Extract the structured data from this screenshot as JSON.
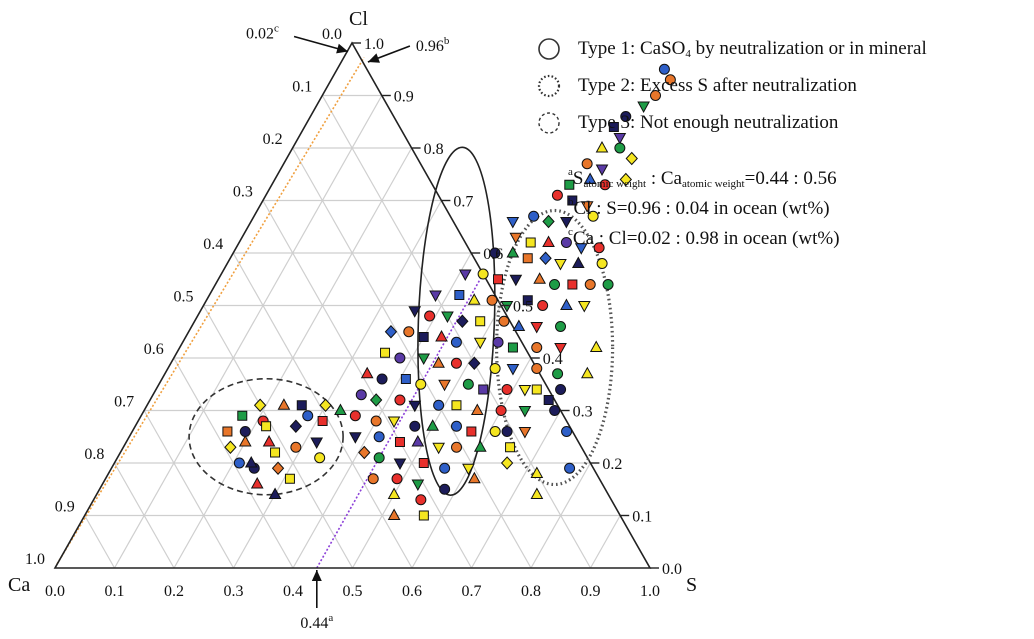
{
  "chart_data": {
    "type": "scatter",
    "subtype": "ternary",
    "axes": {
      "vertex_top": "Cl",
      "vertex_left": "Ca",
      "vertex_right": "S",
      "bottom_ticks": [
        "0.0",
        "0.1",
        "0.2",
        "0.3",
        "0.4",
        "0.5",
        "0.6",
        "0.7",
        "0.8",
        "0.9",
        "1.0"
      ],
      "right_ticks": [
        "0.0",
        "0.1",
        "0.2",
        "0.3",
        "0.4",
        "0.5",
        "0.6",
        "0.7",
        "0.8",
        "0.9",
        "1.0"
      ],
      "left_ticks": [
        "0.0",
        "0.1",
        "0.2",
        "0.3",
        "0.4",
        "0.5",
        "0.6",
        "0.7",
        "0.8",
        "0.9",
        "1.0"
      ],
      "grid": true
    },
    "reference_lines": [
      {
        "label": "0.44",
        "sup": "a",
        "S": 0.44,
        "color": "#8b3fd8"
      },
      {
        "label": "0.96",
        "sup": "b",
        "Cl": 0.96
      },
      {
        "label": "0.02",
        "sup": "c",
        "Ca": 0.02,
        "color": "#f0a040"
      }
    ],
    "ellipses": [
      {
        "type": "Type 1",
        "center_S": 0.44,
        "center_Cl": 0.47,
        "style": "solid"
      },
      {
        "type": "Type 2",
        "center_S": 0.63,
        "center_Cl": 0.42,
        "style": "dotted"
      },
      {
        "type": "Type 3",
        "center_S": 0.23,
        "center_Cl": 0.25,
        "style": "dashed"
      }
    ],
    "marker_colors": [
      "#e8302c",
      "#f5e620",
      "#1e9c46",
      "#2e5fc8",
      "#e8762a",
      "#5a3aa6",
      "#1c1c5a"
    ],
    "marker_shapes": [
      "circle",
      "square",
      "triangle-up",
      "triangle-down",
      "diamond"
    ],
    "points": [
      [
        0.55,
        0.95,
        3,
        0
      ],
      [
        0.57,
        0.93,
        4,
        0
      ],
      [
        0.56,
        0.9,
        4,
        0
      ],
      [
        0.53,
        0.86,
        6,
        0
      ],
      [
        0.55,
        0.88,
        2,
        3
      ],
      [
        0.52,
        0.84,
        6,
        1
      ],
      [
        0.54,
        0.82,
        5,
        3
      ],
      [
        0.52,
        0.8,
        1,
        2
      ],
      [
        0.55,
        0.8,
        2,
        0
      ],
      [
        0.58,
        0.78,
        1,
        4
      ],
      [
        0.51,
        0.77,
        4,
        0
      ],
      [
        0.54,
        0.76,
        5,
        3
      ],
      [
        0.5,
        0.73,
        2,
        1
      ],
      [
        0.53,
        0.74,
        3,
        2
      ],
      [
        0.56,
        0.73,
        0,
        0
      ],
      [
        0.59,
        0.74,
        1,
        4
      ],
      [
        0.49,
        0.71,
        0,
        0
      ],
      [
        0.52,
        0.7,
        6,
        1
      ],
      [
        0.55,
        0.69,
        4,
        3
      ],
      [
        0.47,
        0.67,
        3,
        0
      ],
      [
        0.44,
        0.66,
        3,
        3
      ],
      [
        0.5,
        0.66,
        2,
        4
      ],
      [
        0.53,
        0.66,
        6,
        3
      ],
      [
        0.57,
        0.67,
        1,
        0
      ],
      [
        0.46,
        0.63,
        4,
        3
      ],
      [
        0.49,
        0.62,
        1,
        1
      ],
      [
        0.52,
        0.62,
        0,
        2
      ],
      [
        0.55,
        0.62,
        5,
        0
      ],
      [
        0.58,
        0.61,
        3,
        3
      ],
      [
        0.61,
        0.61,
        0,
        0
      ],
      [
        0.44,
        0.6,
        6,
        0
      ],
      [
        0.47,
        0.6,
        2,
        2
      ],
      [
        0.5,
        0.59,
        4,
        1
      ],
      [
        0.53,
        0.59,
        3,
        4
      ],
      [
        0.56,
        0.58,
        1,
        3
      ],
      [
        0.59,
        0.58,
        6,
        2
      ],
      [
        0.63,
        0.58,
        1,
        0
      ],
      [
        0.41,
        0.56,
        5,
        3
      ],
      [
        0.44,
        0.56,
        1,
        0
      ],
      [
        0.47,
        0.55,
        0,
        1
      ],
      [
        0.5,
        0.55,
        6,
        3
      ],
      [
        0.54,
        0.55,
        4,
        2
      ],
      [
        0.57,
        0.54,
        2,
        0
      ],
      [
        0.6,
        0.54,
        0,
        1
      ],
      [
        0.63,
        0.54,
        4,
        0
      ],
      [
        0.66,
        0.54,
        2,
        0
      ],
      [
        0.38,
        0.52,
        5,
        3
      ],
      [
        0.42,
        0.52,
        3,
        1
      ],
      [
        0.45,
        0.51,
        1,
        2
      ],
      [
        0.48,
        0.51,
        4,
        0
      ],
      [
        0.51,
        0.5,
        2,
        3
      ],
      [
        0.54,
        0.51,
        6,
        1
      ],
      [
        0.57,
        0.5,
        0,
        0
      ],
      [
        0.61,
        0.5,
        3,
        2
      ],
      [
        0.64,
        0.5,
        1,
        3
      ],
      [
        0.36,
        0.49,
        6,
        3
      ],
      [
        0.39,
        0.48,
        0,
        0
      ],
      [
        0.42,
        0.48,
        2,
        3
      ],
      [
        0.45,
        0.47,
        6,
        4
      ],
      [
        0.48,
        0.47,
        1,
        1
      ],
      [
        0.52,
        0.47,
        4,
        0
      ],
      [
        0.55,
        0.46,
        3,
        2
      ],
      [
        0.58,
        0.46,
        0,
        3
      ],
      [
        0.62,
        0.46,
        2,
        0
      ],
      [
        0.34,
        0.45,
        3,
        4
      ],
      [
        0.37,
        0.45,
        4,
        0
      ],
      [
        0.4,
        0.44,
        6,
        1
      ],
      [
        0.43,
        0.44,
        0,
        2
      ],
      [
        0.46,
        0.43,
        3,
        0
      ],
      [
        0.5,
        0.43,
        1,
        3
      ],
      [
        0.53,
        0.43,
        5,
        0
      ],
      [
        0.56,
        0.42,
        2,
        1
      ],
      [
        0.6,
        0.42,
        4,
        0
      ],
      [
        0.64,
        0.42,
        0,
        3
      ],
      [
        0.35,
        0.41,
        1,
        1
      ],
      [
        0.38,
        0.4,
        5,
        0
      ],
      [
        0.42,
        0.4,
        2,
        3
      ],
      [
        0.45,
        0.39,
        4,
        2
      ],
      [
        0.48,
        0.39,
        0,
        0
      ],
      [
        0.51,
        0.39,
        6,
        4
      ],
      [
        0.55,
        0.38,
        1,
        0
      ],
      [
        0.58,
        0.38,
        3,
        3
      ],
      [
        0.62,
        0.38,
        4,
        0
      ],
      [
        0.66,
        0.37,
        2,
        0
      ],
      [
        0.71,
        0.37,
        1,
        2
      ],
      [
        0.34,
        0.37,
        0,
        2
      ],
      [
        0.37,
        0.36,
        6,
        0
      ],
      [
        0.41,
        0.36,
        3,
        1
      ],
      [
        0.44,
        0.35,
        1,
        0
      ],
      [
        0.48,
        0.35,
        4,
        3
      ],
      [
        0.52,
        0.35,
        2,
        0
      ],
      [
        0.55,
        0.34,
        5,
        1
      ],
      [
        0.59,
        0.34,
        0,
        0
      ],
      [
        0.62,
        0.34,
        1,
        3
      ],
      [
        0.68,
        0.34,
        6,
        0
      ],
      [
        0.35,
        0.33,
        5,
        0
      ],
      [
        0.38,
        0.32,
        2,
        4
      ],
      [
        0.42,
        0.32,
        0,
        0
      ],
      [
        0.45,
        0.31,
        6,
        3
      ],
      [
        0.49,
        0.31,
        3,
        0
      ],
      [
        0.52,
        0.31,
        1,
        1
      ],
      [
        0.56,
        0.3,
        4,
        2
      ],
      [
        0.6,
        0.3,
        0,
        0
      ],
      [
        0.64,
        0.3,
        2,
        3
      ],
      [
        0.69,
        0.3,
        6,
        0
      ],
      [
        0.36,
        0.29,
        0,
        0
      ],
      [
        0.4,
        0.28,
        4,
        0
      ],
      [
        0.43,
        0.28,
        1,
        3
      ],
      [
        0.47,
        0.27,
        6,
        0
      ],
      [
        0.5,
        0.27,
        2,
        2
      ],
      [
        0.54,
        0.27,
        3,
        0
      ],
      [
        0.57,
        0.26,
        0,
        1
      ],
      [
        0.61,
        0.26,
        1,
        0
      ],
      [
        0.66,
        0.26,
        4,
        3
      ],
      [
        0.73,
        0.26,
        3,
        0
      ],
      [
        0.38,
        0.25,
        6,
        3
      ],
      [
        0.42,
        0.25,
        3,
        0
      ],
      [
        0.46,
        0.24,
        0,
        1
      ],
      [
        0.49,
        0.24,
        5,
        2
      ],
      [
        0.53,
        0.23,
        1,
        3
      ],
      [
        0.56,
        0.23,
        4,
        0
      ],
      [
        0.6,
        0.23,
        2,
        2
      ],
      [
        0.65,
        0.23,
        1,
        1
      ],
      [
        0.41,
        0.22,
        4,
        4
      ],
      [
        0.44,
        0.21,
        2,
        0
      ],
      [
        0.48,
        0.2,
        6,
        3
      ],
      [
        0.52,
        0.2,
        0,
        1
      ],
      [
        0.56,
        0.19,
        3,
        0
      ],
      [
        0.6,
        0.19,
        1,
        3
      ],
      [
        0.45,
        0.17,
        4,
        0
      ],
      [
        0.49,
        0.17,
        0,
        0
      ],
      [
        0.53,
        0.16,
        2,
        3
      ],
      [
        0.58,
        0.15,
        6,
        0
      ],
      [
        0.5,
        0.14,
        1,
        2
      ],
      [
        0.55,
        0.13,
        0,
        0
      ],
      [
        0.52,
        0.1,
        4,
        2
      ],
      [
        0.57,
        0.1,
        1,
        1
      ],
      [
        0.17,
        0.29,
        2,
        1
      ],
      [
        0.19,
        0.31,
        1,
        4
      ],
      [
        0.21,
        0.28,
        0,
        0
      ],
      [
        0.23,
        0.31,
        4,
        2
      ],
      [
        0.22,
        0.27,
        1,
        1
      ],
      [
        0.26,
        0.31,
        6,
        1
      ],
      [
        0.28,
        0.29,
        3,
        0
      ],
      [
        0.3,
        0.31,
        1,
        4
      ],
      [
        0.27,
        0.27,
        6,
        4
      ],
      [
        0.31,
        0.28,
        0,
        1
      ],
      [
        0.33,
        0.3,
        2,
        2
      ],
      [
        0.2,
        0.24,
        4,
        2
      ],
      [
        0.24,
        0.24,
        0,
        2
      ],
      [
        0.26,
        0.22,
        1,
        1
      ],
      [
        0.29,
        0.23,
        4,
        0
      ],
      [
        0.32,
        0.24,
        6,
        3
      ],
      [
        0.34,
        0.21,
        1,
        0
      ],
      [
        0.21,
        0.2,
        3,
        0
      ],
      [
        0.24,
        0.19,
        6,
        0
      ],
      [
        0.28,
        0.19,
        4,
        4
      ],
      [
        0.31,
        0.17,
        1,
        1
      ],
      [
        0.26,
        0.16,
        0,
        2
      ],
      [
        0.3,
        0.14,
        6,
        2
      ],
      [
        0.19,
        0.26,
        6,
        0
      ],
      [
        0.23,
        0.2,
        6,
        2
      ],
      [
        0.16,
        0.26,
        4,
        1
      ],
      [
        0.18,
        0.23,
        1,
        4
      ],
      [
        0.63,
        0.26,
        6,
        0
      ],
      [
        0.66,
        0.2,
        1,
        4
      ],
      [
        0.72,
        0.18,
        1,
        2
      ],
      [
        0.77,
        0.19,
        3,
        0
      ],
      [
        0.74,
        0.14,
        1,
        2
      ],
      [
        0.62,
        0.17,
        4,
        2
      ],
      [
        0.64,
        0.34,
        1,
        1
      ],
      [
        0.7,
        0.42,
        1,
        2
      ],
      [
        0.67,
        0.32,
        6,
        1
      ]
    ]
  },
  "legend": {
    "items": [
      {
        "pre": "Type 1: CaSO",
        "sub": "4",
        "post": " by neutralization or in mineral",
        "style": "solid"
      },
      {
        "pre": "Type 2: Excess S after neutralization",
        "sub": "",
        "post": "",
        "style": "dotted"
      },
      {
        "pre": "Type 3: Not enough neutralization",
        "sub": "",
        "post": "",
        "style": "dashed"
      }
    ]
  },
  "notes": {
    "a": {
      "sup": "a",
      "t1": "S",
      "s1": "atomic weight",
      "t2": " : Ca",
      "s2": "atomic weight",
      "t3": "=0.44 : 0.56"
    },
    "b": {
      "sup": "b",
      "text": "Cl : S=0.96 : 0.04 in ocean (wt%)"
    },
    "c": {
      "sup": "c",
      "text": "Ca : Cl=0.02 : 0.98 in ocean (wt%)"
    }
  }
}
